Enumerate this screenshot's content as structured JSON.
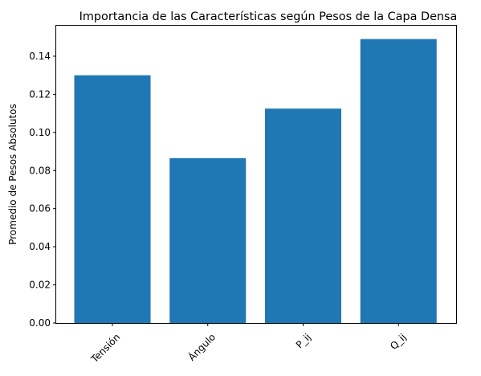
{
  "chart_data": {
    "type": "bar",
    "title": "Importancia de las Características según Pesos de la Capa Densa",
    "xlabel": "",
    "ylabel": "Promedio de Pesos Absolutos",
    "categories": [
      "Tensión",
      "Ángulo",
      "P_ij",
      "Q_ij"
    ],
    "values": [
      0.13,
      0.0865,
      0.1125,
      0.149
    ],
    "ylim": [
      0,
      0.156
    ],
    "yticks": [
      "0.00",
      "0.02",
      "0.04",
      "0.06",
      "0.08",
      "0.10",
      "0.12",
      "0.14"
    ],
    "ytick_values": [
      0.0,
      0.02,
      0.04,
      0.06,
      0.08,
      0.1,
      0.12,
      0.14
    ],
    "grid": false,
    "legend": "none",
    "bar_color": "#1f77b4",
    "xtick_rotation": 45
  }
}
